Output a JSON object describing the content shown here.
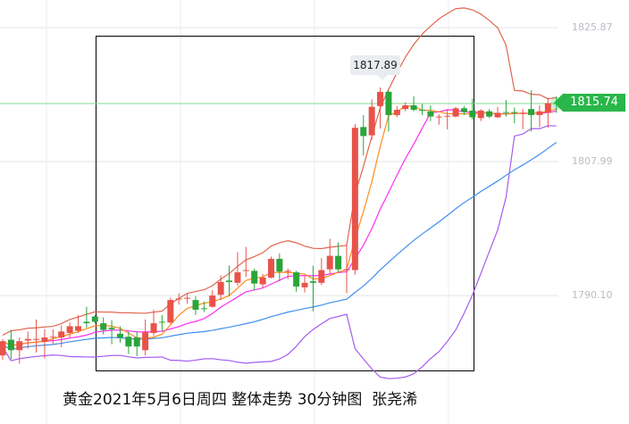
{
  "chart_data": {
    "type": "candlestick",
    "title": "黄金2021年5月6日周四 整体走势 30分钟图  张尧浠",
    "y_ticks": [
      "1825.87",
      "1807.99",
      "1790.10"
    ],
    "ylim": [
      1776.0,
      1829.5
    ],
    "grid": true,
    "current_price": "1815.74",
    "tooltip_high": "1817.89",
    "colors": {
      "up": "#e8534a",
      "down": "#2aa53a",
      "upper_band": "#e0654f",
      "lower_band": "#a45cf0",
      "ma_fast": "#ff8c1a",
      "ma_mid": "#ff2ff0",
      "ma_slow": "#3f8fef",
      "current_line": "#86d98f",
      "price_tag": "#29b64a"
    },
    "candles": [
      [
        1782.1,
        1784.3,
        1781.5,
        1784.0
      ],
      [
        1784.2,
        1785.5,
        1781.6,
        1782.8
      ],
      [
        1782.8,
        1784.5,
        1781.0,
        1784.0
      ],
      [
        1784.1,
        1785.3,
        1783.0,
        1784.3
      ],
      [
        1784.2,
        1786.9,
        1782.5,
        1784.3
      ],
      [
        1783.9,
        1785.6,
        1781.7,
        1784.5
      ],
      [
        1784.5,
        1785.6,
        1783.5,
        1784.6
      ],
      [
        1784.5,
        1786.1,
        1783.2,
        1785.3
      ],
      [
        1785.1,
        1786.5,
        1784.5,
        1786.0
      ],
      [
        1785.4,
        1787.5,
        1785.1,
        1786.0
      ],
      [
        1786.6,
        1788.6,
        1785.8,
        1786.4
      ],
      [
        1787.3,
        1787.5,
        1786.4,
        1786.6
      ],
      [
        1786.4,
        1787.2,
        1784.9,
        1785.5
      ],
      [
        1785.8,
        1786.8,
        1783.6,
        1785.6
      ],
      [
        1785.0,
        1786.0,
        1783.8,
        1784.5
      ],
      [
        1784.6,
        1785.3,
        1782.3,
        1783.3
      ],
      [
        1784.5,
        1785.3,
        1782.0,
        1783.3
      ],
      [
        1782.8,
        1786.9,
        1782.1,
        1785.2
      ],
      [
        1785.1,
        1788.2,
        1784.7,
        1786.4
      ],
      [
        1786.6,
        1787.5,
        1785.3,
        1786.5
      ],
      [
        1786.5,
        1789.8,
        1786.3,
        1789.5
      ],
      [
        1789.6,
        1790.4,
        1788.9,
        1789.7
      ],
      [
        1789.7,
        1790.3,
        1789.0,
        1789.8
      ],
      [
        1789.5,
        1790.0,
        1787.5,
        1788.2
      ],
      [
        1788.4,
        1789.3,
        1787.9,
        1788.3
      ],
      [
        1788.6,
        1790.8,
        1788.5,
        1790.1
      ],
      [
        1790.2,
        1792.8,
        1789.5,
        1791.9
      ],
      [
        1792.1,
        1794.1,
        1790.0,
        1791.9
      ],
      [
        1791.8,
        1795.9,
        1791.4,
        1793.2
      ],
      [
        1793.5,
        1796.6,
        1792.6,
        1793.5
      ],
      [
        1793.4,
        1793.7,
        1790.8,
        1791.7
      ],
      [
        1791.6,
        1793.0,
        1791.1,
        1792.5
      ],
      [
        1792.5,
        1795.3,
        1792.4,
        1795.0
      ],
      [
        1795.0,
        1795.7,
        1792.0,
        1793.3
      ],
      [
        1793.3,
        1793.7,
        1792.3,
        1793.4
      ],
      [
        1793.2,
        1793.4,
        1790.6,
        1791.3
      ],
      [
        1791.2,
        1792.7,
        1790.5,
        1791.8
      ],
      [
        1792.0,
        1794.1,
        1788.0,
        1791.8
      ],
      [
        1791.8,
        1795.1,
        1791.5,
        1793.5
      ],
      [
        1793.6,
        1797.7,
        1793.0,
        1795.4
      ],
      [
        1795.4,
        1797.2,
        1793.2,
        1793.6
      ],
      [
        1793.5,
        1797.0,
        1790.4,
        1793.6
      ],
      [
        1793.5,
        1813.0,
        1792.9,
        1812.5
      ],
      [
        1812.6,
        1814.2,
        1808.8,
        1811.4
      ],
      [
        1811.5,
        1816.3,
        1810.9,
        1815.3
      ],
      [
        1815.4,
        1817.89,
        1812.4,
        1817.3
      ],
      [
        1817.3,
        1817.5,
        1812.0,
        1814.2
      ],
      [
        1814.2,
        1815.4,
        1813.9,
        1814.9
      ],
      [
        1815.0,
        1815.9,
        1814.7,
        1815.5
      ],
      [
        1815.5,
        1816.7,
        1814.7,
        1814.9
      ],
      [
        1814.9,
        1815.7,
        1814.2,
        1814.8
      ],
      [
        1814.7,
        1815.5,
        1813.4,
        1814.0
      ],
      [
        1813.9,
        1814.3,
        1812.9,
        1814.0
      ],
      [
        1814.0,
        1815.0,
        1812.3,
        1814.1
      ],
      [
        1814.0,
        1815.3,
        1813.9,
        1815.1
      ],
      [
        1815.1,
        1815.4,
        1814.2,
        1814.6
      ],
      [
        1814.8,
        1816.4,
        1813.6,
        1813.9
      ],
      [
        1813.8,
        1815.0,
        1813.4,
        1814.8
      ],
      [
        1814.7,
        1815.0,
        1813.8,
        1814.0
      ],
      [
        1813.9,
        1815.3,
        1813.8,
        1814.5
      ],
      [
        1814.6,
        1816.2,
        1814.0,
        1814.5
      ],
      [
        1814.6,
        1815.2,
        1813.1,
        1814.5
      ],
      [
        1814.4,
        1815.0,
        1812.3,
        1814.5
      ],
      [
        1815.0,
        1817.5,
        1812.0,
        1814.2
      ],
      [
        1814.2,
        1815.5,
        1812.6,
        1814.7
      ],
      [
        1814.5,
        1816.5,
        1812.5,
        1815.8
      ],
      [
        1815.8,
        1816.7,
        1814.5,
        1815.74
      ]
    ]
  }
}
